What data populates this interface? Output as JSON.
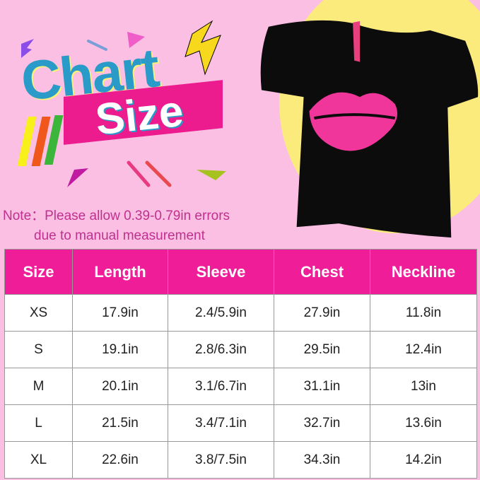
{
  "title": {
    "word1": "Chart",
    "word2": "Size"
  },
  "note": {
    "line1": "Note：Please allow 0.39-0.79in errors",
    "line2": "due to manual measurement"
  },
  "colors": {
    "background": "#fbbfe3",
    "header": "#f01d99",
    "title_blue": "#2a9bc8",
    "accent_yellow": "#fbeb7c"
  },
  "table": {
    "headers": [
      "Size",
      "Length",
      "Sleeve",
      "Chest",
      "Neckline"
    ],
    "rows": [
      [
        "XS",
        "17.9in",
        "2.4/5.9in",
        "27.9in",
        "11.8in"
      ],
      [
        "S",
        "19.1in",
        "2.8/6.3in",
        "29.5in",
        "12.4in"
      ],
      [
        "M",
        "20.1in",
        "3.1/6.7in",
        "31.1in",
        "13in"
      ],
      [
        "L",
        "21.5in",
        "3.4/7.1in",
        "32.7in",
        "13.6in"
      ],
      [
        "XL",
        "22.6in",
        "3.8/7.5in",
        "34.3in",
        "14.2in"
      ]
    ]
  }
}
